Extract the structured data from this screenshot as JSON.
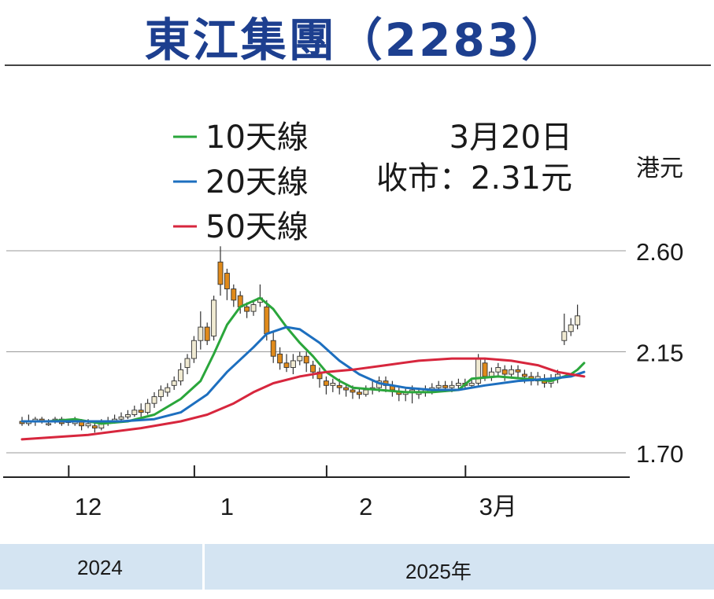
{
  "title": "東江集團（2283）",
  "legend": [
    {
      "label": "10天線",
      "color": "#2aa63b"
    },
    {
      "label": "20天線",
      "color": "#1d6fbf"
    },
    {
      "label": "50天線",
      "color": "#d7263d"
    }
  ],
  "info": {
    "date": "3月20日",
    "close": "收市：2.31元"
  },
  "colors": {
    "title": "#1d3f8f",
    "up_candle": "#f0ead2",
    "down_candle": "#e08a1a",
    "band": "#d4e4f2"
  },
  "chart_data": {
    "type": "candlestick",
    "y_unit": "港元",
    "y_ticks": [
      2.6,
      2.15,
      1.7
    ],
    "y_tick_labels": [
      "2.60",
      "2.15",
      "1.70"
    ],
    "ylim": [
      1.7,
      2.6
    ],
    "grid": true,
    "x_labels": [
      {
        "label": "12",
        "at": 10
      },
      {
        "label": "1",
        "at": 31
      },
      {
        "label": "2",
        "at": 52
      },
      {
        "label": "3月",
        "at": 72
      }
    ],
    "x_separators": [
      7,
      26,
      46,
      67
    ],
    "year_labels": [
      "2024",
      "2025年"
    ],
    "candles": [
      [
        1.84,
        1.83,
        1.86,
        1.82
      ],
      [
        1.83,
        1.84,
        1.87,
        1.82
      ],
      [
        1.84,
        1.85,
        1.86,
        1.82
      ],
      [
        1.85,
        1.84,
        1.86,
        1.83
      ],
      [
        1.83,
        1.83,
        1.85,
        1.82
      ],
      [
        1.84,
        1.85,
        1.86,
        1.83
      ],
      [
        1.85,
        1.83,
        1.86,
        1.82
      ],
      [
        1.84,
        1.84,
        1.85,
        1.82
      ],
      [
        1.83,
        1.84,
        1.86,
        1.82
      ],
      [
        1.84,
        1.82,
        1.85,
        1.8
      ],
      [
        1.82,
        1.83,
        1.85,
        1.81
      ],
      [
        1.82,
        1.81,
        1.84,
        1.79
      ],
      [
        1.81,
        1.83,
        1.85,
        1.8
      ],
      [
        1.83,
        1.84,
        1.86,
        1.82
      ],
      [
        1.84,
        1.85,
        1.87,
        1.83
      ],
      [
        1.85,
        1.86,
        1.88,
        1.84
      ],
      [
        1.86,
        1.87,
        1.89,
        1.85
      ],
      [
        1.87,
        1.89,
        1.91,
        1.86
      ],
      [
        1.89,
        1.88,
        1.92,
        1.86
      ],
      [
        1.88,
        1.92,
        1.94,
        1.87
      ],
      [
        1.92,
        1.95,
        1.97,
        1.9
      ],
      [
        1.95,
        1.98,
        2.0,
        1.93
      ],
      [
        1.97,
        1.99,
        2.01,
        1.95
      ],
      [
        2.0,
        2.02,
        2.04,
        1.98
      ],
      [
        2.02,
        2.07,
        2.1,
        2.0
      ],
      [
        2.08,
        2.12,
        2.14,
        2.05
      ],
      [
        2.12,
        2.2,
        2.22,
        2.1
      ],
      [
        2.2,
        2.26,
        2.33,
        2.16
      ],
      [
        2.26,
        2.2,
        2.28,
        2.18
      ],
      [
        2.22,
        2.38,
        2.4,
        2.2
      ],
      [
        2.55,
        2.45,
        2.62,
        2.4
      ],
      [
        2.5,
        2.43,
        2.52,
        2.38
      ],
      [
        2.43,
        2.38,
        2.45,
        2.35
      ],
      [
        2.4,
        2.35,
        2.42,
        2.32
      ],
      [
        2.35,
        2.33,
        2.37,
        2.3
      ],
      [
        2.33,
        2.36,
        2.38,
        2.31
      ],
      [
        2.37,
        2.39,
        2.45,
        2.35
      ],
      [
        2.35,
        2.23,
        2.38,
        2.2
      ],
      [
        2.2,
        2.13,
        2.24,
        2.1
      ],
      [
        2.14,
        2.1,
        2.17,
        2.07
      ],
      [
        2.1,
        2.08,
        2.14,
        2.06
      ],
      [
        2.08,
        2.11,
        2.14,
        2.05
      ],
      [
        2.11,
        2.13,
        2.15,
        2.09
      ],
      [
        2.13,
        2.1,
        2.15,
        2.06
      ],
      [
        2.09,
        2.06,
        2.11,
        2.03
      ],
      [
        2.06,
        2.03,
        2.08,
        1.99
      ],
      [
        2.02,
        2.0,
        2.04,
        1.96
      ],
      [
        2.0,
        2.01,
        2.03,
        1.97
      ],
      [
        2.0,
        1.99,
        2.03,
        1.96
      ],
      [
        1.99,
        1.98,
        2.01,
        1.95
      ],
      [
        1.98,
        1.97,
        2.0,
        1.94
      ],
      [
        1.97,
        1.96,
        1.99,
        1.94
      ],
      [
        1.96,
        1.98,
        2.0,
        1.95
      ],
      [
        1.98,
        1.99,
        2.02,
        1.96
      ],
      [
        1.99,
        2.02,
        2.04,
        1.97
      ],
      [
        2.02,
        2.0,
        2.04,
        1.97
      ],
      [
        2.0,
        1.98,
        2.02,
        1.95
      ],
      [
        1.97,
        1.96,
        1.99,
        1.93
      ],
      [
        1.96,
        1.97,
        1.99,
        1.93
      ],
      [
        1.97,
        1.98,
        2.0,
        1.92
      ],
      [
        1.96,
        1.97,
        1.99,
        1.94
      ],
      [
        1.97,
        1.98,
        2.0,
        1.95
      ],
      [
        1.98,
        1.99,
        2.01,
        1.96
      ],
      [
        1.99,
        2.0,
        2.02,
        1.97
      ],
      [
        2.0,
        1.99,
        2.02,
        1.97
      ],
      [
        1.99,
        2.0,
        2.02,
        1.97
      ],
      [
        2.0,
        2.01,
        2.03,
        1.98
      ],
      [
        2.01,
        2.0,
        2.03,
        1.98
      ],
      [
        2.0,
        2.01,
        2.03,
        1.99
      ],
      [
        2.01,
        2.12,
        2.14,
        2.0
      ],
      [
        2.1,
        2.04,
        2.12,
        2.02
      ],
      [
        2.04,
        2.06,
        2.08,
        2.02
      ],
      [
        2.06,
        2.08,
        2.1,
        2.04
      ],
      [
        2.07,
        2.05,
        2.09,
        2.02
      ],
      [
        2.05,
        2.07,
        2.09,
        2.03
      ],
      [
        2.07,
        2.06,
        2.09,
        2.03
      ],
      [
        2.05,
        2.04,
        2.07,
        2.01
      ],
      [
        2.04,
        2.02,
        2.06,
        2.0
      ],
      [
        2.02,
        2.04,
        2.06,
        2.0
      ],
      [
        2.03,
        2.01,
        2.05,
        1.99
      ],
      [
        2.01,
        2.03,
        2.05,
        1.99
      ],
      [
        2.03,
        2.05,
        2.07,
        2.01
      ],
      [
        2.2,
        2.24,
        2.32,
        2.18
      ],
      [
        2.24,
        2.27,
        2.3,
        2.22
      ],
      [
        2.27,
        2.31,
        2.36,
        2.25
      ]
    ],
    "series": [
      {
        "name": "10天線",
        "values": [
          [
            0,
            1.84
          ],
          [
            4,
            1.84
          ],
          [
            8,
            1.85
          ],
          [
            12,
            1.83
          ],
          [
            16,
            1.84
          ],
          [
            20,
            1.87
          ],
          [
            24,
            1.94
          ],
          [
            27,
            2.02
          ],
          [
            29,
            2.14
          ],
          [
            31,
            2.27
          ],
          [
            33,
            2.35
          ],
          [
            36,
            2.39
          ],
          [
            38,
            2.34
          ],
          [
            40,
            2.26
          ],
          [
            42,
            2.19
          ],
          [
            44,
            2.13
          ],
          [
            46,
            2.06
          ],
          [
            48,
            2.02
          ],
          [
            50,
            1.99
          ],
          [
            54,
            1.98
          ],
          [
            58,
            1.97
          ],
          [
            62,
            1.97
          ],
          [
            66,
            1.98
          ],
          [
            68,
            2.03
          ],
          [
            72,
            2.04
          ],
          [
            76,
            2.03
          ],
          [
            80,
            2.02
          ],
          [
            83,
            2.05
          ],
          [
            84,
            2.07
          ],
          [
            85,
            2.1
          ]
        ]
      },
      {
        "name": "20天線",
        "values": [
          [
            0,
            1.84
          ],
          [
            6,
            1.84
          ],
          [
            10,
            1.84
          ],
          [
            15,
            1.84
          ],
          [
            20,
            1.85
          ],
          [
            24,
            1.88
          ],
          [
            28,
            1.96
          ],
          [
            31,
            2.06
          ],
          [
            35,
            2.17
          ],
          [
            37,
            2.23
          ],
          [
            40,
            2.26
          ],
          [
            42,
            2.25
          ],
          [
            45,
            2.19
          ],
          [
            48,
            2.11
          ],
          [
            51,
            2.05
          ],
          [
            54,
            2.01
          ],
          [
            58,
            1.99
          ],
          [
            62,
            1.98
          ],
          [
            66,
            1.98
          ],
          [
            70,
            2.0
          ],
          [
            75,
            2.02
          ],
          [
            80,
            2.03
          ],
          [
            83,
            2.04
          ],
          [
            85,
            2.06
          ]
        ]
      },
      {
        "name": "50天線",
        "values": [
          [
            0,
            1.76
          ],
          [
            10,
            1.78
          ],
          [
            18,
            1.81
          ],
          [
            24,
            1.84
          ],
          [
            28,
            1.87
          ],
          [
            32,
            1.92
          ],
          [
            35,
            1.97
          ],
          [
            38,
            2.01
          ],
          [
            42,
            2.04
          ],
          [
            46,
            2.06
          ],
          [
            50,
            2.07
          ],
          [
            55,
            2.09
          ],
          [
            60,
            2.11
          ],
          [
            65,
            2.12
          ],
          [
            70,
            2.12
          ],
          [
            74,
            2.11
          ],
          [
            78,
            2.09
          ],
          [
            81,
            2.06
          ],
          [
            83,
            2.05
          ],
          [
            85,
            2.04
          ]
        ]
      }
    ]
  }
}
